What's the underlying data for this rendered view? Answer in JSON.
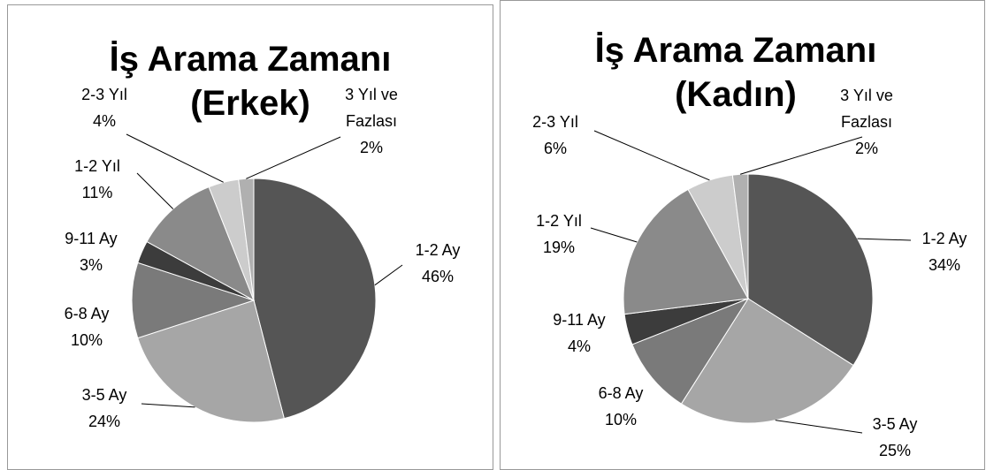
{
  "chart_data": [
    {
      "type": "pie",
      "title": "İş Arama Zamanı (Erkek)",
      "categories": [
        "1-2 Ay",
        "3-5 Ay",
        "6-8 Ay",
        "9-11 Ay",
        "1-2 Yıl",
        "2-3 Yıl",
        "3 Yıl ve Fazlası"
      ],
      "values": [
        46,
        24,
        10,
        3,
        11,
        4,
        2
      ],
      "value_labels": [
        "46%",
        "24%",
        "10%",
        "3%",
        "11%",
        "4%",
        "2%"
      ],
      "colors": [
        "#555555",
        "#a6a6a6",
        "#7a7a7a",
        "#3c3c3c",
        "#8a8a8a",
        "#cccccc",
        "#b0b0b0"
      ]
    },
    {
      "type": "pie",
      "title": "İş Arama Zamanı (Kadın)",
      "categories": [
        "1-2 Ay",
        "3-5 Ay",
        "6-8 Ay",
        "9-11 Ay",
        "1-2 Yıl",
        "2-3 Yıl",
        "3 Yıl ve Fazlası"
      ],
      "values": [
        34,
        25,
        10,
        4,
        19,
        6,
        2
      ],
      "value_labels": [
        "34%",
        "25%",
        "10%",
        "4%",
        "19%",
        "6%",
        "2%"
      ],
      "colors": [
        "#555555",
        "#a6a6a6",
        "#7a7a7a",
        "#3c3c3c",
        "#8a8a8a",
        "#cccccc",
        "#b0b0b0"
      ]
    }
  ]
}
